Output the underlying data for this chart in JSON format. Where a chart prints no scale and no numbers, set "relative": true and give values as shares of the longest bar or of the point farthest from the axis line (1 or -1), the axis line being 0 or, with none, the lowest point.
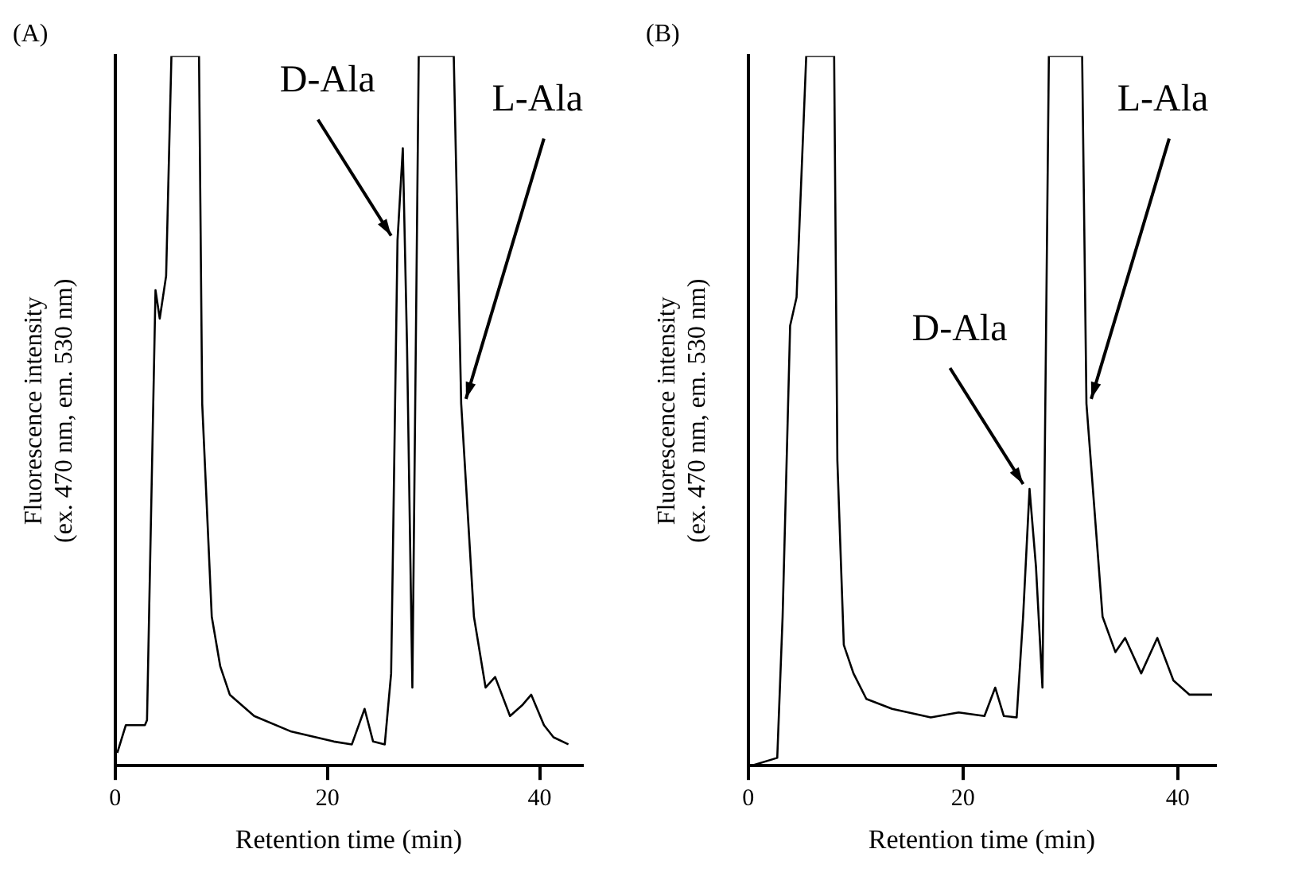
{
  "chart_data": [
    {
      "type": "line",
      "title": "(A)",
      "xlabel": "Retention time (min)",
      "ylabel": "Fluorescence intensity\n(ex. 470 nm, em. 530 nm)",
      "relative": true,
      "xlim": [
        0,
        44
      ],
      "xticks": [
        0,
        20,
        40
      ],
      "marker": "none",
      "legend": false,
      "x": [
        0.2,
        1.0,
        2.8,
        3.0,
        3.8,
        4.2,
        4.8,
        5.3,
        7.9,
        8.2,
        9.1,
        9.9,
        10.8,
        13.1,
        16.6,
        20.6,
        22.3,
        23.5,
        24.3,
        25.4,
        26.0,
        26.6,
        27.1,
        27.5,
        28.0,
        28.6,
        31.9,
        32.6,
        33.8,
        34.9,
        35.8,
        37.2,
        38.4,
        39.2,
        40.4,
        41.3,
        42.7
      ],
      "series": [
        {
          "color": "#000000",
          "values": [
            0.018,
            0.057,
            0.057,
            0.064,
            0.67,
            0.63,
            0.69,
            1,
            1,
            0.51,
            0.21,
            0.14,
            0.1,
            0.07,
            0.048,
            0.034,
            0.03,
            0.08,
            0.034,
            0.03,
            0.13,
            0.74,
            0.87,
            0.59,
            0.11,
            1,
            1,
            0.51,
            0.21,
            0.11,
            0.125,
            0.07,
            0.086,
            0.1,
            0.057,
            0.04,
            0.03
          ]
        }
      ],
      "annotations": [
        {
          "text": "D-Ala",
          "x": 26.6,
          "y": 0.74
        },
        {
          "text": "L-Ala",
          "x": 32.6,
          "y": 0.51
        }
      ]
    },
    {
      "type": "line",
      "title": "(B)",
      "xlabel": "Retention time (min)",
      "ylabel": "Fluorescence intensity\n(ex. 470 nm, em. 530 nm)",
      "relative": true,
      "xlim": [
        0,
        43.5
      ],
      "xticks": [
        0,
        20,
        40
      ],
      "marker": "none",
      "legend": false,
      "x": [
        0.3,
        2.7,
        3.2,
        3.9,
        4.5,
        5.4,
        8.0,
        8.3,
        8.9,
        9.8,
        11.0,
        13.4,
        17.0,
        19.6,
        22.0,
        23.0,
        23.8,
        25.0,
        25.6,
        26.2,
        26.8,
        27.4,
        28.0,
        31.1,
        31.5,
        33.0,
        34.2,
        35.1,
        36.6,
        38.1,
        39.6,
        41.1,
        43.2
      ],
      "series": [
        {
          "color": "#000000",
          "values": [
            0,
            0.011,
            0.21,
            0.62,
            0.66,
            1,
            1,
            0.43,
            0.17,
            0.13,
            0.094,
            0.08,
            0.068,
            0.075,
            0.07,
            0.11,
            0.07,
            0.068,
            0.21,
            0.39,
            0.28,
            0.11,
            1,
            1,
            0.51,
            0.21,
            0.16,
            0.18,
            0.13,
            0.18,
            0.12,
            0.1,
            0.1
          ]
        }
      ],
      "annotations": [
        {
          "text": "D-Ala",
          "x": 26.2,
          "y": 0.39
        },
        {
          "text": "L-Ala",
          "x": 31.5,
          "y": 0.51
        }
      ]
    }
  ]
}
